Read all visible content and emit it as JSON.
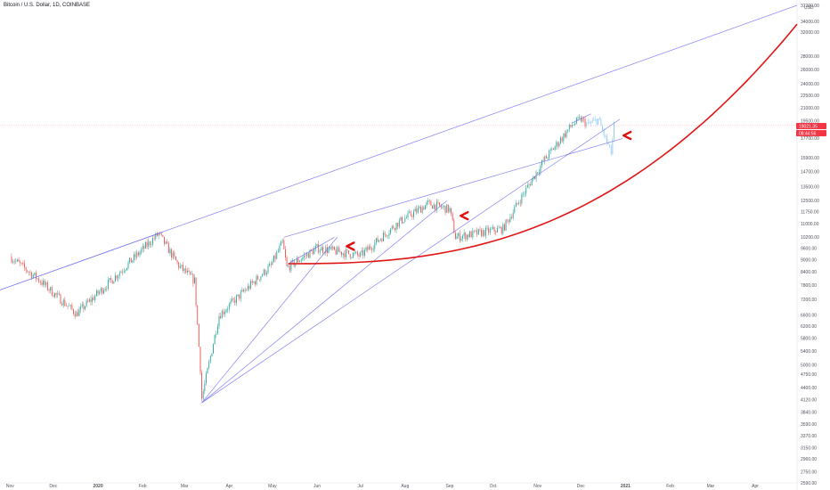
{
  "header": {
    "symbol_title": "Bitcoin / U.S. Dollar, 1D, COINBASE",
    "currency": "USD"
  },
  "price_tag": {
    "price": "19021.35",
    "countdown": "08:44:56",
    "color": "#f23645"
  },
  "colors": {
    "up_candle": "#26a69a",
    "down_candle": "#ef5350",
    "projection_candle": "#90caf9",
    "trendline": "#6e6cf0",
    "curve": "#e01616",
    "arrow": "#e01010",
    "grid": "#eef0f3",
    "price_line": "#f23645"
  },
  "chart_data": {
    "type": "candlestick",
    "title": "Bitcoin / U.S. Dollar, 1D, COINBASE",
    "y_scale": "log",
    "ylim": [
      2590,
      37200
    ],
    "x_ticks": [
      "Nov",
      "Dec",
      "2020",
      "Feb",
      "Mar",
      "Apr",
      "May",
      "Jun",
      "Jul",
      "Aug",
      "Sep",
      "Oct",
      "Nov",
      "Dec",
      "2021",
      "Feb",
      "Mar",
      "Apr"
    ],
    "y_ticks": [
      37200,
      34000,
      32000,
      28000,
      26000,
      24000,
      22500,
      21000,
      19500,
      17700,
      15900,
      14700,
      13500,
      12500,
      11750,
      11000,
      10200,
      9600,
      9000,
      8400,
      7800,
      7200,
      6600,
      6200,
      5800,
      5400,
      5000,
      4750,
      4400,
      4120,
      3840,
      3590,
      3370,
      3150,
      2960,
      2750,
      2590
    ],
    "price_anchors": [
      {
        "date": "2019-11-01",
        "price": 9150
      },
      {
        "date": "2019-11-20",
        "price": 8100
      },
      {
        "date": "2019-12-17",
        "price": 6650
      },
      {
        "date": "2020-01-10",
        "price": 8000
      },
      {
        "date": "2020-02-12",
        "price": 10400
      },
      {
        "date": "2020-02-26",
        "price": 8700
      },
      {
        "date": "2020-03-08",
        "price": 8000
      },
      {
        "date": "2020-03-12",
        "price": 4900
      },
      {
        "date": "2020-03-13",
        "price": 4150
      },
      {
        "date": "2020-03-25",
        "price": 6600
      },
      {
        "date": "2020-04-30",
        "price": 8700
      },
      {
        "date": "2020-05-08",
        "price": 9900
      },
      {
        "date": "2020-05-11",
        "price": 8600
      },
      {
        "date": "2020-06-01",
        "price": 9600
      },
      {
        "date": "2020-07-01",
        "price": 9200
      },
      {
        "date": "2020-07-27",
        "price": 11050
      },
      {
        "date": "2020-08-17",
        "price": 12300
      },
      {
        "date": "2020-09-01",
        "price": 11900
      },
      {
        "date": "2020-09-05",
        "price": 10200
      },
      {
        "date": "2020-10-08",
        "price": 10700
      },
      {
        "date": "2020-10-21",
        "price": 12800
      },
      {
        "date": "2020-11-05",
        "price": 15600
      },
      {
        "date": "2020-11-25",
        "price": 19100
      },
      {
        "date": "2020-12-01",
        "price": 19700
      },
      {
        "date": "2020-12-06",
        "price": 19100
      },
      {
        "date": "2020-12-13",
        "price": 19700
      },
      {
        "date": "2020-12-22",
        "price": 16300
      },
      {
        "date": "2020-12-24",
        "price": 19000
      }
    ],
    "projection_from": "2020-12-05",
    "trendlines": [
      {
        "from": {
          "date": "2019-10-25",
          "price": 7600
        },
        "to": {
          "date": "2021-04-30",
          "price": 37200
        }
      },
      {
        "from": {
          "date": "2019-10-25",
          "price": 7600
        },
        "to": {
          "date": "2020-02-15",
          "price": 10500
        }
      },
      {
        "from": {
          "date": "2020-03-13",
          "price": 4050
        },
        "to": {
          "date": "2020-06-15",
          "price": 10200
        }
      },
      {
        "from": {
          "date": "2020-03-13",
          "price": 4050
        },
        "to": {
          "date": "2020-08-30",
          "price": 12500
        }
      },
      {
        "from": {
          "date": "2020-03-13",
          "price": 4050
        },
        "to": {
          "date": "2020-12-28",
          "price": 19700
        }
      },
      {
        "from": {
          "date": "2020-05-09",
          "price": 10200
        },
        "to": {
          "date": "2020-12-30",
          "price": 17700
        }
      },
      {
        "from": {
          "date": "2020-05-12",
          "price": 8800
        },
        "to": {
          "date": "2020-06-13",
          "price": 10200
        }
      },
      {
        "from": {
          "date": "2020-11-25",
          "price": 19300
        },
        "to": {
          "date": "2020-12-08",
          "price": 20300
        }
      }
    ],
    "curve": {
      "from": {
        "date": "2020-05-12",
        "price": 8800
      },
      "to": {
        "date": "2021-04-30",
        "price": 33500
      }
    },
    "arrows": [
      {
        "date": "2020-06-21",
        "price": 9700
      },
      {
        "date": "2020-09-08",
        "price": 11500
      },
      {
        "date": "2020-12-30",
        "price": 18000
      }
    ]
  }
}
